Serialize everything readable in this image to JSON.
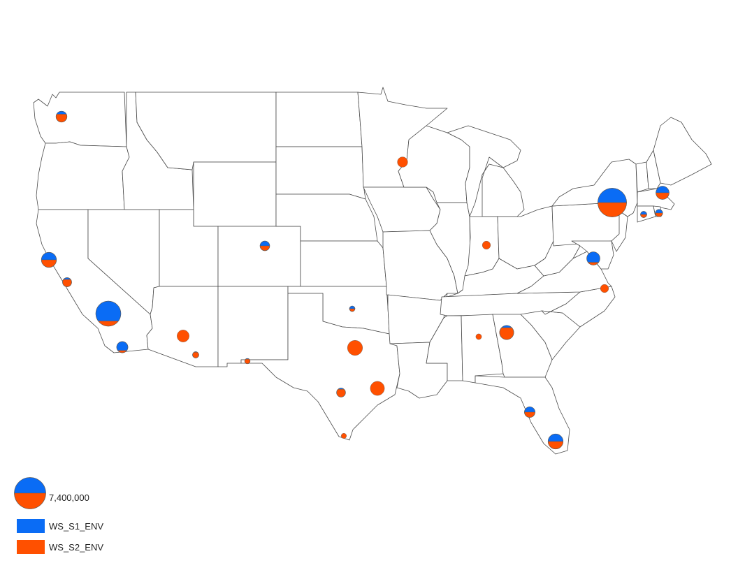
{
  "legend": {
    "size_value": 7400000,
    "size_label": "7,400,000",
    "series": [
      {
        "name": "WS_S1_ENV",
        "color": "#0a6cf5"
      },
      {
        "name": "WS_S2_ENV",
        "color": "#ff5000"
      }
    ]
  },
  "pies": [
    {
      "id": "seattle",
      "total": 900000,
      "s1": 0.48
    },
    {
      "id": "san-francisco",
      "total": 1700000,
      "s1": 0.5
    },
    {
      "id": "san-jose",
      "total": 620000,
      "s1": 0.45
    },
    {
      "id": "los-angeles",
      "total": 4700000,
      "s1": 0.55
    },
    {
      "id": "san-diego",
      "total": 950000,
      "s1": 0.55
    },
    {
      "id": "phoenix",
      "total": 1100000,
      "s1": 0.0
    },
    {
      "id": "tucson",
      "total": 300000,
      "s1": 0.35
    },
    {
      "id": "denver",
      "total": 700000,
      "s1": 0.5
    },
    {
      "id": "el-paso",
      "total": 220000,
      "s1": 0.4
    },
    {
      "id": "oklahoma-city",
      "total": 230000,
      "s1": 0.5
    },
    {
      "id": "dallas",
      "total": 1700000,
      "s1": 0.0
    },
    {
      "id": "austin",
      "total": 600000,
      "s1": 0.4
    },
    {
      "id": "houston",
      "total": 1500000,
      "s1": 0.0
    },
    {
      "id": "mcallen",
      "total": 210000,
      "s1": 0.0
    },
    {
      "id": "minneapolis",
      "total": 800000,
      "s1": 0.0
    },
    {
      "id": "indianapolis",
      "total": 500000,
      "s1": 0.0
    },
    {
      "id": "birmingham",
      "total": 250000,
      "s1": 0.0
    },
    {
      "id": "atlanta",
      "total": 1500000,
      "s1": 0.42
    },
    {
      "id": "tampa",
      "total": 850000,
      "s1": 0.5
    },
    {
      "id": "miami",
      "total": 1700000,
      "s1": 0.5
    },
    {
      "id": "norfolk",
      "total": 500000,
      "s1": 0.0
    },
    {
      "id": "washington-dc",
      "total": 1300000,
      "s1": 0.55
    },
    {
      "id": "new-york",
      "total": 6200000,
      "s1": 0.5
    },
    {
      "id": "hartford",
      "total": 300000,
      "s1": 0.5
    },
    {
      "id": "providence",
      "total": 400000,
      "s1": 0.5
    },
    {
      "id": "boston",
      "total": 1300000,
      "s1": 0.5
    }
  ]
}
